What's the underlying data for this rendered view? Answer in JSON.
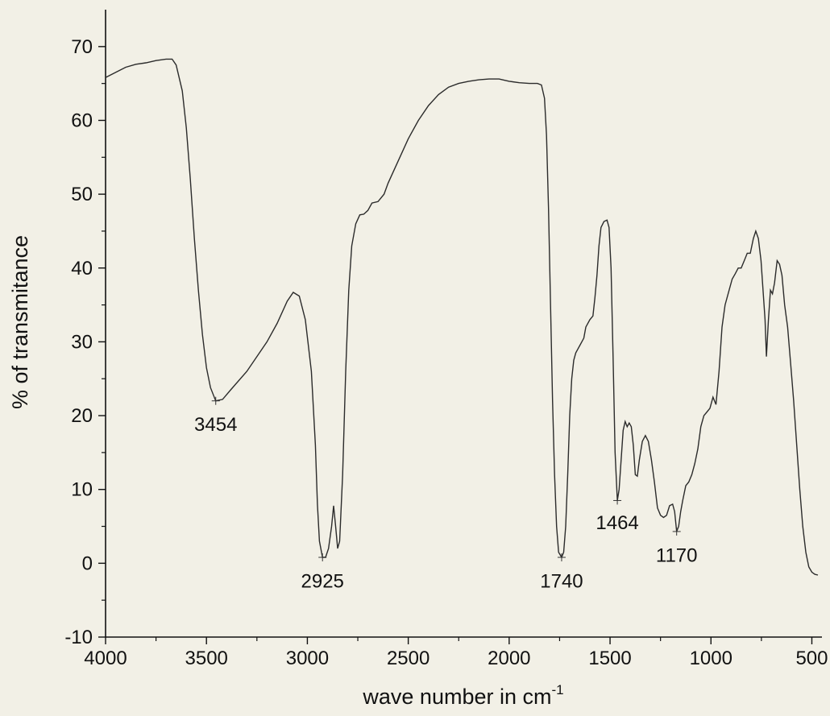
{
  "chart_data": {
    "type": "line",
    "title": "",
    "xlabel": "wave number in cm",
    "xlabel_superscript": "-1",
    "ylabel": "% of transmitance",
    "xlim": [
      4000,
      450
    ],
    "ylim": [
      -10,
      75
    ],
    "x_ticks": [
      4000,
      3500,
      3000,
      2500,
      2000,
      1500,
      1000,
      500
    ],
    "y_ticks": [
      -10,
      0,
      10,
      20,
      30,
      40,
      50,
      60,
      70
    ],
    "grid": false,
    "legend": "none",
    "line_color": "#2b2b2b",
    "series": [
      {
        "points": [
          [
            4000,
            65.8
          ],
          [
            3950,
            66.5
          ],
          [
            3900,
            67.2
          ],
          [
            3850,
            67.6
          ],
          [
            3800,
            67.8
          ],
          [
            3750,
            68.1
          ],
          [
            3700,
            68.3
          ],
          [
            3670,
            68.3
          ],
          [
            3650,
            67.5
          ],
          [
            3620,
            64
          ],
          [
            3600,
            59
          ],
          [
            3580,
            52
          ],
          [
            3560,
            44
          ],
          [
            3540,
            37
          ],
          [
            3520,
            31
          ],
          [
            3500,
            26.5
          ],
          [
            3480,
            23.8
          ],
          [
            3454,
            22
          ],
          [
            3420,
            22.2
          ],
          [
            3380,
            23.5
          ],
          [
            3300,
            26
          ],
          [
            3200,
            30
          ],
          [
            3150,
            32.5
          ],
          [
            3100,
            35.5
          ],
          [
            3070,
            36.7
          ],
          [
            3040,
            36.2
          ],
          [
            3010,
            33
          ],
          [
            2980,
            26
          ],
          [
            2960,
            16
          ],
          [
            2950,
            8
          ],
          [
            2940,
            3
          ],
          [
            2925,
            0.8
          ],
          [
            2910,
            0.8
          ],
          [
            2895,
            2
          ],
          [
            2880,
            5
          ],
          [
            2870,
            7.8
          ],
          [
            2860,
            5
          ],
          [
            2850,
            2
          ],
          [
            2840,
            3
          ],
          [
            2825,
            12
          ],
          [
            2810,
            26
          ],
          [
            2795,
            37
          ],
          [
            2780,
            43
          ],
          [
            2760,
            46
          ],
          [
            2740,
            47.2
          ],
          [
            2720,
            47.3
          ],
          [
            2700,
            47.8
          ],
          [
            2680,
            48.8
          ],
          [
            2650,
            49
          ],
          [
            2620,
            50
          ],
          [
            2600,
            51.5
          ],
          [
            2550,
            54.5
          ],
          [
            2500,
            57.5
          ],
          [
            2450,
            60
          ],
          [
            2400,
            62
          ],
          [
            2350,
            63.5
          ],
          [
            2300,
            64.5
          ],
          [
            2250,
            65
          ],
          [
            2200,
            65.3
          ],
          [
            2150,
            65.5
          ],
          [
            2100,
            65.6
          ],
          [
            2050,
            65.6
          ],
          [
            2000,
            65.3
          ],
          [
            1950,
            65.1
          ],
          [
            1900,
            65
          ],
          [
            1860,
            65
          ],
          [
            1840,
            64.8
          ],
          [
            1825,
            63
          ],
          [
            1815,
            58
          ],
          [
            1805,
            48
          ],
          [
            1795,
            35
          ],
          [
            1785,
            22
          ],
          [
            1775,
            12
          ],
          [
            1765,
            5
          ],
          [
            1755,
            1.5
          ],
          [
            1740,
            0.8
          ],
          [
            1730,
            1.5
          ],
          [
            1720,
            5
          ],
          [
            1710,
            12
          ],
          [
            1700,
            20
          ],
          [
            1690,
            25
          ],
          [
            1680,
            27.5
          ],
          [
            1670,
            28.5
          ],
          [
            1660,
            29
          ],
          [
            1650,
            29.5
          ],
          [
            1640,
            30
          ],
          [
            1630,
            30.5
          ],
          [
            1620,
            32
          ],
          [
            1600,
            33
          ],
          [
            1585,
            33.5
          ],
          [
            1575,
            36
          ],
          [
            1565,
            39
          ],
          [
            1555,
            43
          ],
          [
            1545,
            45.5
          ],
          [
            1530,
            46.3
          ],
          [
            1515,
            46.5
          ],
          [
            1505,
            45.5
          ],
          [
            1495,
            40
          ],
          [
            1485,
            28
          ],
          [
            1475,
            15
          ],
          [
            1464,
            8.5
          ],
          [
            1455,
            10
          ],
          [
            1445,
            14
          ],
          [
            1435,
            18
          ],
          [
            1425,
            19.2
          ],
          [
            1415,
            18.5
          ],
          [
            1405,
            19
          ],
          [
            1395,
            18.5
          ],
          [
            1385,
            16
          ],
          [
            1375,
            12
          ],
          [
            1365,
            11.8
          ],
          [
            1355,
            14
          ],
          [
            1340,
            16.5
          ],
          [
            1325,
            17.3
          ],
          [
            1310,
            16.5
          ],
          [
            1295,
            14
          ],
          [
            1280,
            11
          ],
          [
            1265,
            7.5
          ],
          [
            1250,
            6.5
          ],
          [
            1235,
            6.2
          ],
          [
            1220,
            6.5
          ],
          [
            1205,
            7.8
          ],
          [
            1190,
            8
          ],
          [
            1180,
            7
          ],
          [
            1170,
            4.3
          ],
          [
            1160,
            5
          ],
          [
            1150,
            7
          ],
          [
            1140,
            8.5
          ],
          [
            1125,
            10.5
          ],
          [
            1110,
            11
          ],
          [
            1095,
            12
          ],
          [
            1080,
            13.5
          ],
          [
            1065,
            15.5
          ],
          [
            1050,
            18.5
          ],
          [
            1035,
            20
          ],
          [
            1020,
            20.5
          ],
          [
            1005,
            21
          ],
          [
            990,
            22.5
          ],
          [
            975,
            21.5
          ],
          [
            960,
            26
          ],
          [
            945,
            32
          ],
          [
            930,
            35
          ],
          [
            910,
            37
          ],
          [
            895,
            38.5
          ],
          [
            880,
            39.2
          ],
          [
            865,
            40
          ],
          [
            850,
            40
          ],
          [
            835,
            41
          ],
          [
            820,
            42
          ],
          [
            805,
            42
          ],
          [
            790,
            44
          ],
          [
            778,
            45
          ],
          [
            765,
            44
          ],
          [
            752,
            41
          ],
          [
            742,
            37
          ],
          [
            732,
            33
          ],
          [
            725,
            28
          ],
          [
            715,
            33
          ],
          [
            705,
            37
          ],
          [
            695,
            36.5
          ],
          [
            685,
            38
          ],
          [
            672,
            41
          ],
          [
            660,
            40.5
          ],
          [
            648,
            39
          ],
          [
            635,
            35
          ],
          [
            620,
            32
          ],
          [
            605,
            27
          ],
          [
            590,
            22
          ],
          [
            575,
            16
          ],
          [
            560,
            10
          ],
          [
            545,
            5
          ],
          [
            530,
            1.5
          ],
          [
            515,
            -0.5
          ],
          [
            500,
            -1.2
          ],
          [
            485,
            -1.5
          ],
          [
            470,
            -1.6
          ]
        ]
      }
    ],
    "annotations": [
      {
        "text": "3454",
        "x": 3454,
        "y": 22,
        "dy": 3.2
      },
      {
        "text": "2925",
        "x": 2925,
        "y": 0.8,
        "dy": 3.2
      },
      {
        "text": "1740",
        "x": 1740,
        "y": 0.8,
        "dy": 3.2
      },
      {
        "text": "1464",
        "x": 1464,
        "y": 8.5,
        "dy": 3.0
      },
      {
        "text": "1170",
        "x": 1170,
        "y": 4.3,
        "dy": 3.2
      }
    ]
  }
}
